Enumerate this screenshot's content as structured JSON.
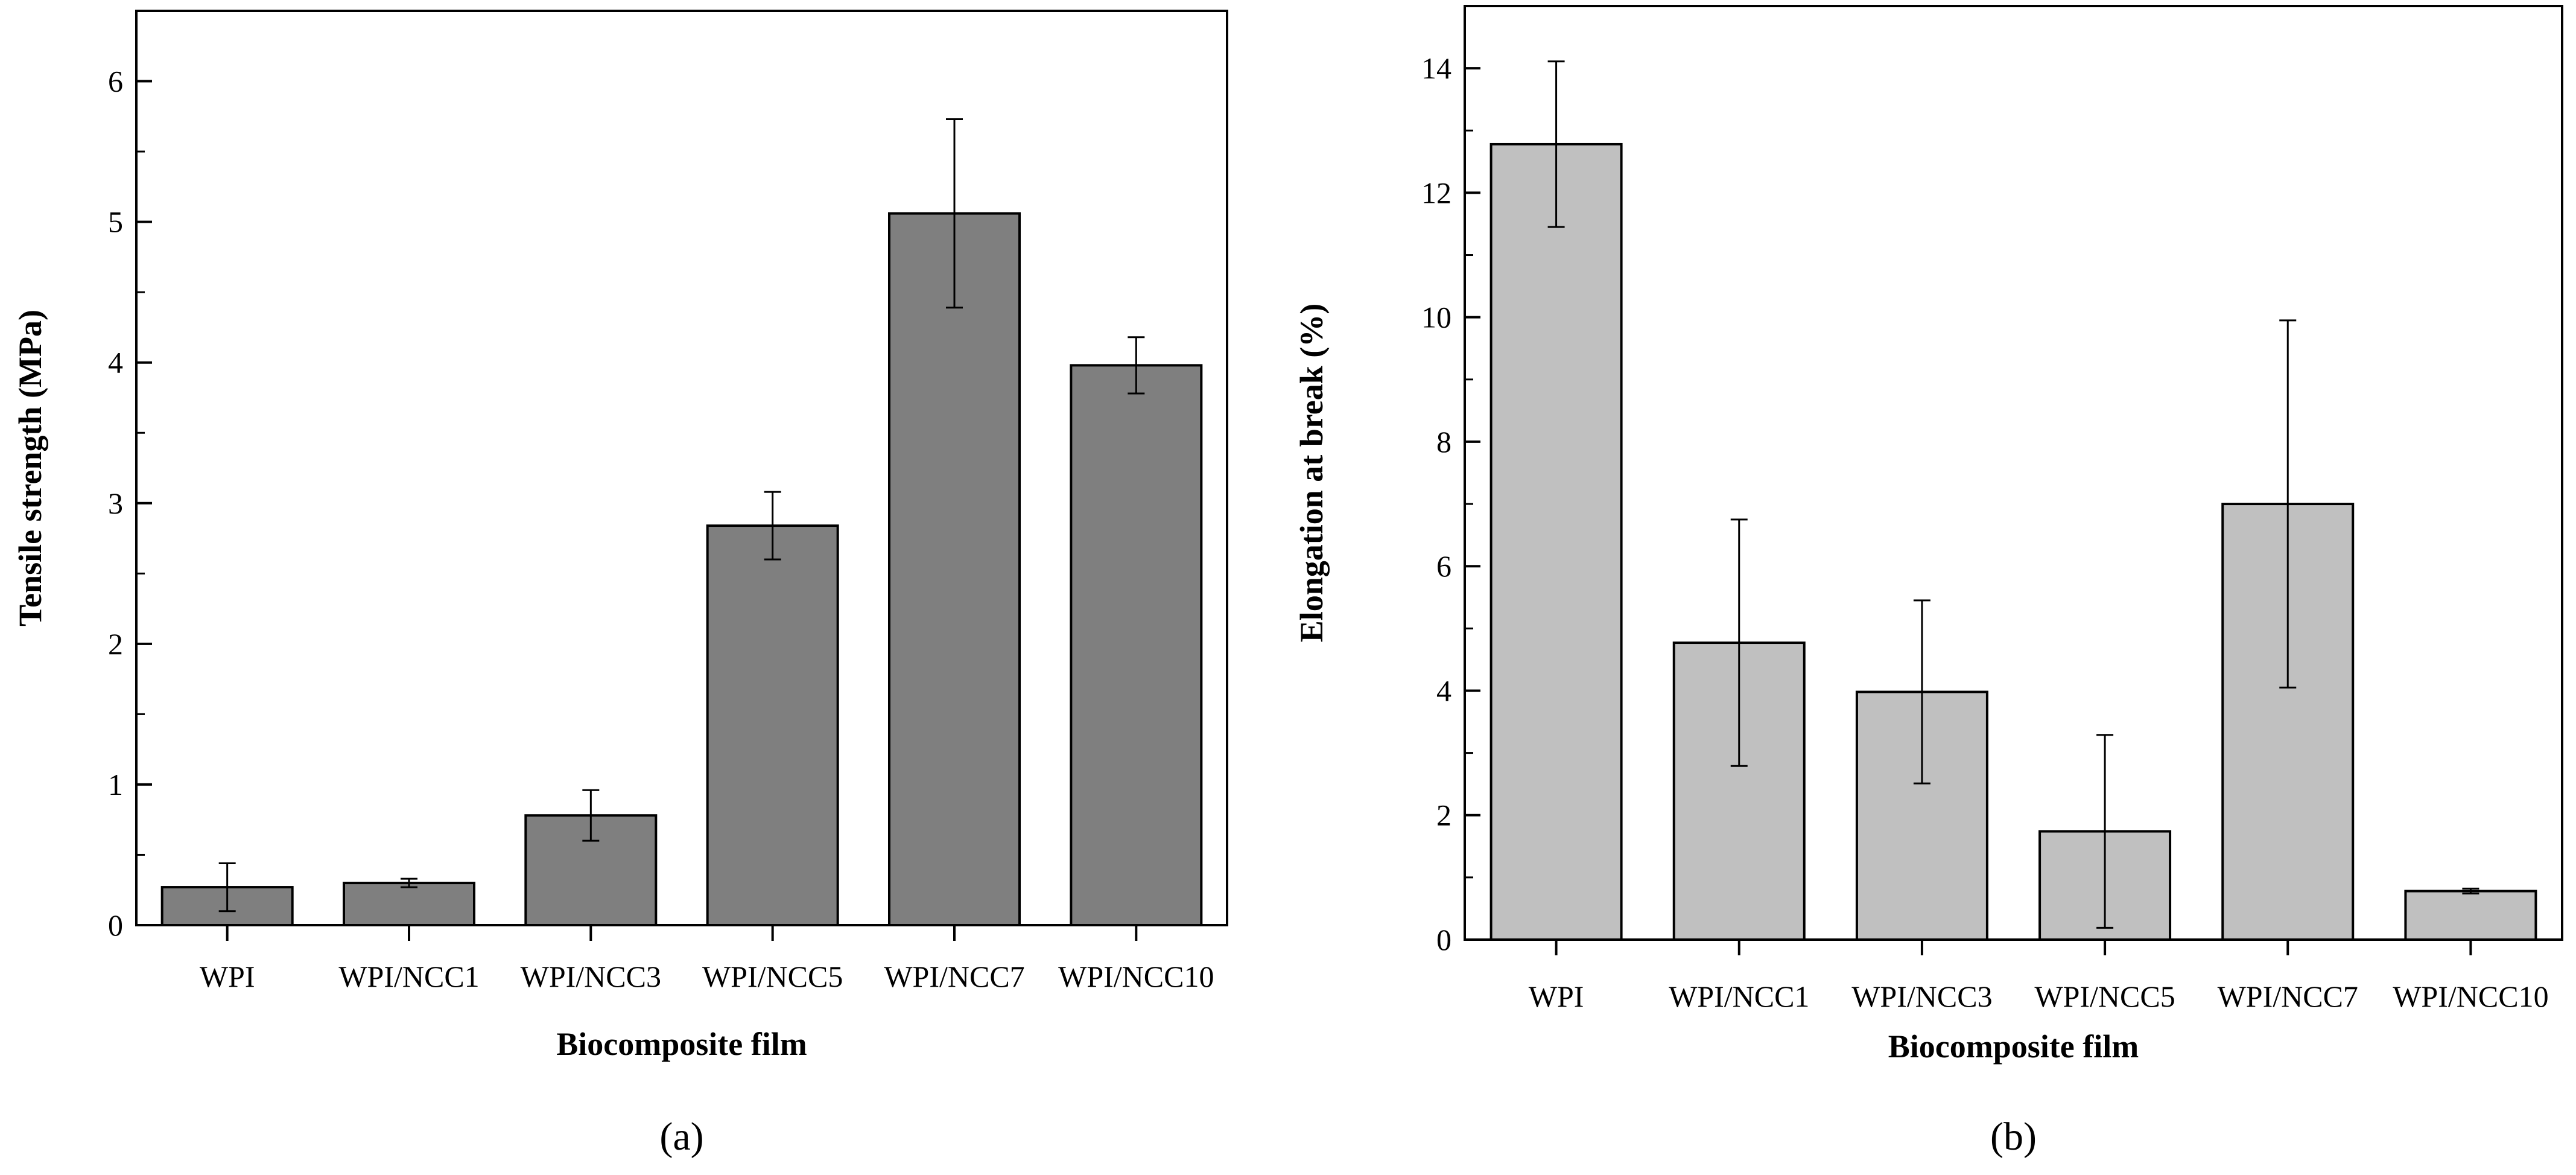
{
  "chart_data": [
    {
      "type": "bar",
      "panel_label": "(a)",
      "title": "",
      "xlabel": "Biocomposite film",
      "ylabel": "Tensile strength (MPa)",
      "categories": [
        "WPI",
        "WPI/NCC1",
        "WPI/NCC3",
        "WPI/NCC5",
        "WPI/NCC7",
        "WPI/NCC10"
      ],
      "values": [
        0.27,
        0.3,
        0.78,
        2.84,
        5.06,
        3.98
      ],
      "errors": [
        0.17,
        0.03,
        0.18,
        0.24,
        0.67,
        0.2
      ],
      "ylim": [
        0,
        6.5
      ],
      "yticks": [
        0,
        1,
        2,
        3,
        4,
        5,
        6
      ],
      "ytick_labels": [
        "0",
        "1",
        "2",
        "3",
        "4",
        "5",
        "6"
      ],
      "bar_color": "#7f7f7f",
      "grid": false
    },
    {
      "type": "bar",
      "panel_label": "(b)",
      "title": "",
      "xlabel": "Biocomposite film",
      "ylabel": "Elongation at break (%)",
      "categories": [
        "WPI",
        "WPI/NCC1",
        "WPI/NCC3",
        "WPI/NCC5",
        "WPI/NCC7",
        "WPI/NCC10"
      ],
      "values": [
        12.78,
        4.77,
        3.98,
        1.74,
        7.0,
        0.78
      ],
      "errors": [
        1.33,
        1.98,
        1.47,
        1.55,
        2.95,
        0.04
      ],
      "ylim": [
        0,
        15
      ],
      "yticks": [
        0,
        2,
        4,
        6,
        8,
        10,
        12,
        14
      ],
      "ytick_labels": [
        "0",
        "2",
        "4",
        "6",
        "8",
        "10",
        "12",
        "14"
      ],
      "bar_color": "#c0c0c0",
      "grid": false
    }
  ]
}
